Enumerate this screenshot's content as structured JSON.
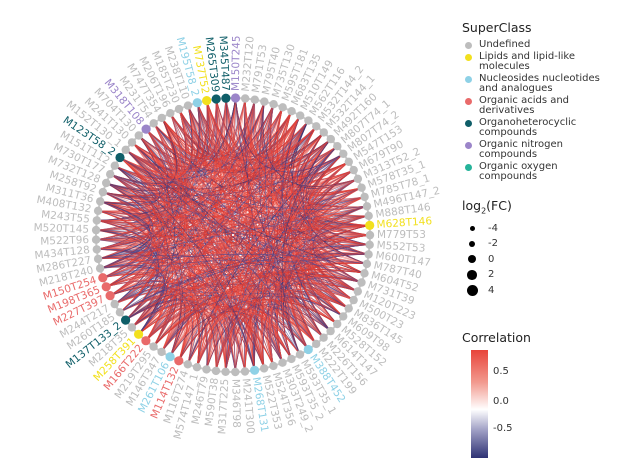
{
  "chart_data": {
    "type": "chord",
    "legend_superclass": {
      "title": "SuperClass",
      "items": [
        {
          "label": "Undefined",
          "color": "#bdbdbd"
        },
        {
          "label": "Lipids and lipid-like molecules",
          "color": "#f2e01e"
        },
        {
          "label": "Nucleosides nucleotides and analogues",
          "color": "#8ed1e6"
        },
        {
          "label": "Organic acids and derivatives",
          "color": "#e96a6a"
        },
        {
          "label": "Organoheterocyclic compounds",
          "color": "#0f5e68"
        },
        {
          "label": "Organic nitrogen compounds",
          "color": "#9b85c9"
        },
        {
          "label": "Organic oxygen compounds",
          "color": "#26b39a"
        }
      ]
    },
    "legend_fc": {
      "title_main": "log",
      "title_sub": "2",
      "title_rest": "(FC)",
      "values": [
        "-4",
        "-2",
        "0",
        "2",
        "4"
      ]
    },
    "legend_corr": {
      "title": "Correlation",
      "ticks": [
        "0.5",
        "0.0",
        "-0.5"
      ],
      "color_high": "#e8443a",
      "color_mid": "#ffffff",
      "color_low": "#2e3274"
    },
    "nodes": [
      {
        "label": "M628T146",
        "class": "Lipids and lipid-like molecules"
      },
      {
        "label": "M779T53",
        "class": "Undefined"
      },
      {
        "label": "M552T53",
        "class": "Undefined"
      },
      {
        "label": "M600T147",
        "class": "Undefined"
      },
      {
        "label": "M787T40",
        "class": "Undefined"
      },
      {
        "label": "M604T52",
        "class": "Undefined"
      },
      {
        "label": "M731T39",
        "class": "Undefined"
      },
      {
        "label": "M120T223",
        "class": "Undefined"
      },
      {
        "label": "M500T23",
        "class": "Undefined"
      },
      {
        "label": "M836T145",
        "class": "Undefined"
      },
      {
        "label": "M609T98",
        "class": "Undefined"
      },
      {
        "label": "M528T152",
        "class": "Undefined"
      },
      {
        "label": "M614T147",
        "class": "Undefined"
      },
      {
        "label": "M226T156",
        "class": "Undefined"
      },
      {
        "label": "M222T199",
        "class": "Undefined"
      },
      {
        "label": "M388T452",
        "class": "Nucleosides nucleotides and analogues"
      },
      {
        "label": "M593T35_1",
        "class": "Undefined"
      },
      {
        "label": "M593T35_2",
        "class": "Undefined"
      },
      {
        "label": "M303T249_2",
        "class": "Undefined"
      },
      {
        "label": "M524T356",
        "class": "Undefined"
      },
      {
        "label": "M522T353",
        "class": "Undefined"
      },
      {
        "label": "M268T131",
        "class": "Nucleosides nucleotides and analogues"
      },
      {
        "label": "M241T300",
        "class": "Undefined"
      },
      {
        "label": "M346T98",
        "class": "Undefined"
      },
      {
        "label": "M317T225",
        "class": "Undefined"
      },
      {
        "label": "M590T38",
        "class": "Undefined"
      },
      {
        "label": "M246T79",
        "class": "Undefined"
      },
      {
        "label": "M574T147_1",
        "class": "Undefined"
      },
      {
        "label": "M116T274",
        "class": "Undefined"
      },
      {
        "label": "M114T132",
        "class": "Organic acids and derivatives"
      },
      {
        "label": "M261T106",
        "class": "Nucleosides nucleotides and analogues"
      },
      {
        "label": "M146T347",
        "class": "Undefined"
      },
      {
        "label": "M219T295",
        "class": "Undefined"
      },
      {
        "label": "M166T222",
        "class": "Organic acids and derivatives"
      },
      {
        "label": "M258T391",
        "class": "Lipids and lipid-like molecules"
      },
      {
        "label": "M218T35",
        "class": "Undefined"
      },
      {
        "label": "M137T133_2",
        "class": "Organoheterocyclic compounds"
      },
      {
        "label": "M260T185",
        "class": "Undefined"
      },
      {
        "label": "M244T217",
        "class": "Undefined"
      },
      {
        "label": "M227T397",
        "class": "Organic acids and derivatives"
      },
      {
        "label": "M198T365",
        "class": "Organic acids and derivatives"
      },
      {
        "label": "M150T254",
        "class": "Organic acids and derivatives"
      },
      {
        "label": "M218T240",
        "class": "Undefined"
      },
      {
        "label": "M286T227",
        "class": "Undefined"
      },
      {
        "label": "M434T128",
        "class": "Undefined"
      },
      {
        "label": "M522T96",
        "class": "Undefined"
      },
      {
        "label": "M520T145",
        "class": "Undefined"
      },
      {
        "label": "M243T55",
        "class": "Undefined"
      },
      {
        "label": "M408T132",
        "class": "Undefined"
      },
      {
        "label": "M311T36",
        "class": "Undefined"
      },
      {
        "label": "M258T92",
        "class": "Undefined"
      },
      {
        "label": "M732T128",
        "class": "Undefined"
      },
      {
        "label": "M730T177",
        "class": "Undefined"
      },
      {
        "label": "M151T112",
        "class": "Undefined"
      },
      {
        "label": "M123T58_2",
        "class": "Organoheterocyclic compounds"
      },
      {
        "label": "M152T130_1",
        "class": "Undefined"
      },
      {
        "label": "M241T130",
        "class": "Undefined"
      },
      {
        "label": "M704T130",
        "class": "Undefined"
      },
      {
        "label": "M318T108",
        "class": "Organic nitrogen compounds"
      },
      {
        "label": "M231T54",
        "class": "Undefined"
      },
      {
        "label": "M747T354",
        "class": "Undefined"
      },
      {
        "label": "M206T196",
        "class": "Undefined"
      },
      {
        "label": "M185T230",
        "class": "Undefined"
      },
      {
        "label": "M238T110",
        "class": "Undefined"
      },
      {
        "label": "M195T58_2",
        "class": "Nucleosides nucleotides and analogues"
      },
      {
        "label": "M737T52",
        "class": "Lipids and lipid-like molecules"
      },
      {
        "label": "M265T309",
        "class": "Organoheterocyclic compounds"
      },
      {
        "label": "M345T487",
        "class": "Organoheterocyclic compounds"
      },
      {
        "label": "M150T245",
        "class": "Organic nitrogen compounds"
      },
      {
        "label": "M232T120",
        "class": "Undefined"
      },
      {
        "label": "M791T53",
        "class": "Undefined"
      },
      {
        "label": "M795T40",
        "class": "Undefined"
      },
      {
        "label": "M735T130",
        "class": "Undefined"
      },
      {
        "label": "M595T181",
        "class": "Undefined"
      },
      {
        "label": "M683T135",
        "class": "Undefined"
      },
      {
        "label": "M510T149",
        "class": "Undefined"
      },
      {
        "label": "M562T116",
        "class": "Undefined"
      },
      {
        "label": "M532T144_2",
        "class": "Undefined"
      },
      {
        "label": "M532T144_1",
        "class": "Undefined"
      },
      {
        "label": "M492T160",
        "class": "Undefined"
      },
      {
        "label": "M807T74_1",
        "class": "Undefined"
      },
      {
        "label": "M807T74_2",
        "class": "Undefined"
      },
      {
        "label": "M547T153",
        "class": "Undefined"
      },
      {
        "label": "M679T90",
        "class": "Undefined"
      },
      {
        "label": "M313T52_2",
        "class": "Undefined"
      },
      {
        "label": "M578T35_1",
        "class": "Undefined"
      },
      {
        "label": "M785T78_1",
        "class": "Undefined"
      },
      {
        "label": "M496T147_2",
        "class": "Undefined"
      },
      {
        "label": "M888T146",
        "class": "Undefined"
      }
    ]
  }
}
